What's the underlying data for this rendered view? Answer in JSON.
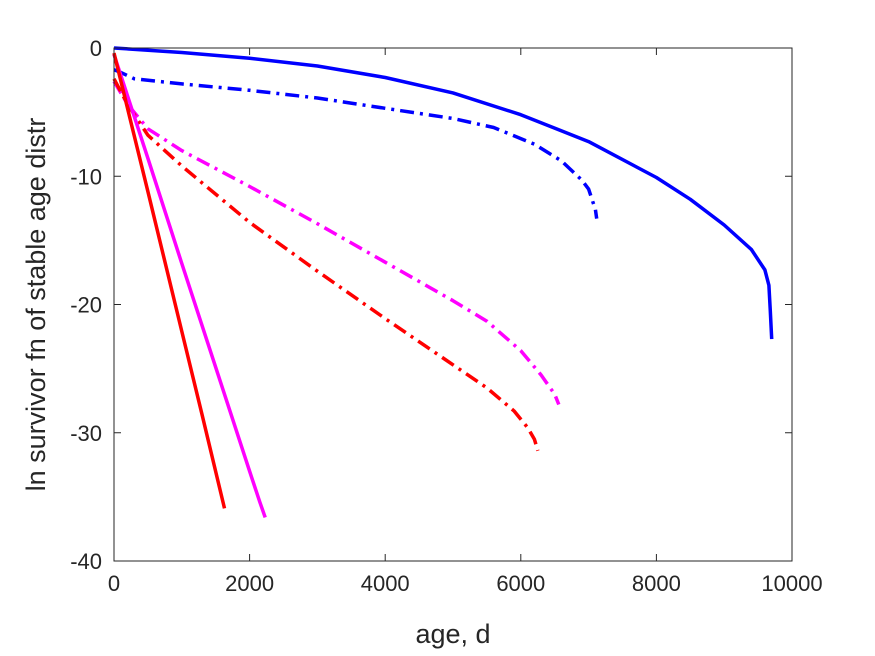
{
  "chart_data": {
    "type": "line",
    "title": "",
    "xlabel": "age, d",
    "ylabel": "ln survivor fn of stable age distr",
    "xlim": [
      0,
      10000
    ],
    "ylim": [
      -40,
      0
    ],
    "xticks": [
      0,
      2000,
      4000,
      6000,
      8000,
      10000
    ],
    "xtick_labels": [
      "0",
      "2000",
      "4000",
      "6000",
      "8000",
      "10000"
    ],
    "yticks": [
      0,
      -10,
      -20,
      -30,
      -40
    ],
    "ytick_labels": [
      "0",
      "-10",
      "-20",
      "-30",
      "-40"
    ],
    "grid": false,
    "legend": "none",
    "series": [
      {
        "color": "#0000ff",
        "style": "solid",
        "x": [
          0,
          1000,
          2000,
          3000,
          4000,
          5000,
          6000,
          7000,
          8000,
          8500,
          9000,
          9400,
          9600,
          9660,
          9680,
          9700
        ],
        "y": [
          0,
          -0.35,
          -0.8,
          -1.4,
          -2.3,
          -3.5,
          -5.2,
          -7.3,
          -10.1,
          -11.8,
          -13.8,
          -15.7,
          -17.3,
          -18.5,
          -20.5,
          -22.7
        ]
      },
      {
        "color": "#0000ff",
        "style": "dashdot",
        "x": [
          0,
          100,
          300,
          1000,
          2000,
          3000,
          4000,
          5000,
          5600,
          6200,
          6600,
          6900,
          7000,
          7050,
          7100,
          7120
        ],
        "y": [
          -1.7,
          -1.9,
          -2.4,
          -2.8,
          -3.3,
          -3.9,
          -4.7,
          -5.5,
          -6.2,
          -7.5,
          -8.8,
          -10.3,
          -11.0,
          -11.8,
          -12.6,
          -13.3
        ]
      },
      {
        "color": "#ff00ff",
        "style": "dashdot",
        "x": [
          0,
          200,
          500,
          1000,
          2000,
          3000,
          4000,
          5000,
          5500,
          6000,
          6300,
          6500,
          6560
        ],
        "y": [
          -2.6,
          -4.4,
          -6.3,
          -8.0,
          -10.8,
          -13.7,
          -16.7,
          -19.7,
          -21.3,
          -23.6,
          -25.5,
          -27.0,
          -27.8
        ]
      },
      {
        "color": "#ff0000",
        "style": "dashdot",
        "x": [
          0,
          200,
          500,
          1000,
          2000,
          3000,
          4000,
          5000,
          5500,
          5900,
          6100,
          6200,
          6250
        ],
        "y": [
          -2.4,
          -4.4,
          -6.8,
          -9.2,
          -13.6,
          -17.4,
          -21.1,
          -24.7,
          -26.5,
          -28.3,
          -29.6,
          -30.5,
          -31.4
        ]
      },
      {
        "color": "#ff00ff",
        "style": "solid",
        "x": [
          0,
          500,
          1000,
          1500,
          2000,
          2150,
          2230
        ],
        "y": [
          -0.5,
          -8.6,
          -16.8,
          -24.9,
          -33.0,
          -35.4,
          -36.6
        ]
      },
      {
        "color": "#ff0000",
        "style": "solid",
        "x": [
          0,
          500,
          1000,
          1300,
          1630
        ],
        "y": [
          -0.4,
          -11.2,
          -22.1,
          -28.6,
          -35.9
        ]
      }
    ]
  }
}
